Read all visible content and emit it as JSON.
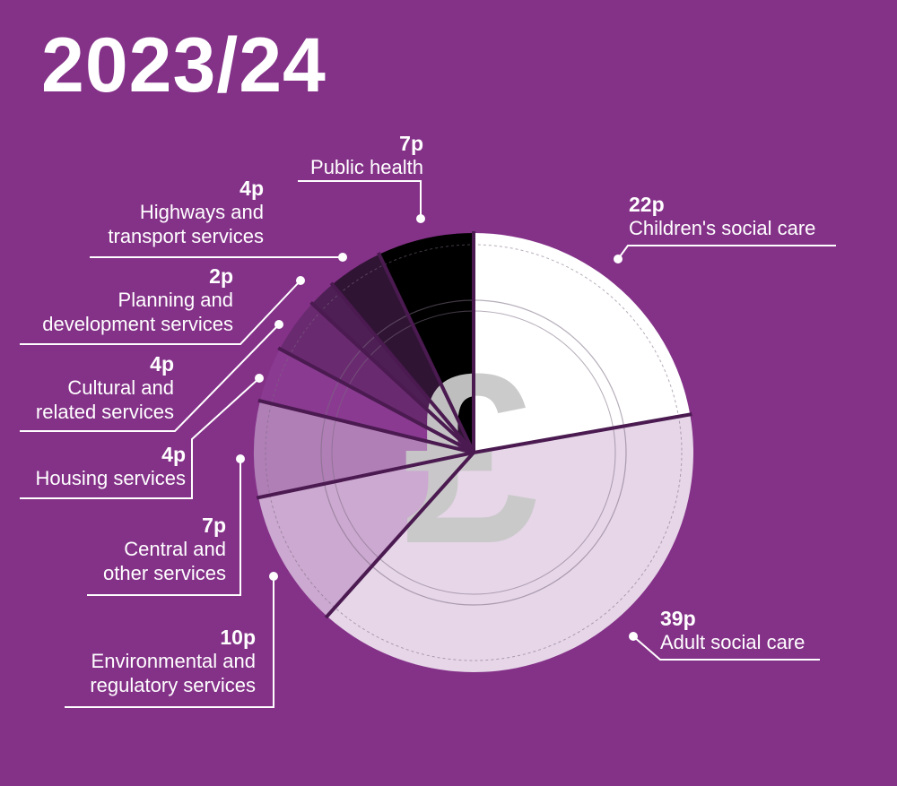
{
  "title": "2023/24",
  "chart_data": {
    "type": "pie",
    "unit": "p",
    "title": "2023/24",
    "slices": [
      {
        "label": "Children's social care",
        "value": 22,
        "value_label": "22p",
        "color": "#ffffff"
      },
      {
        "label": "Adult social care",
        "value": 39,
        "value_label": "39p",
        "color": "#e6d6e8"
      },
      {
        "label": "Environmental and regulatory services",
        "value": 10,
        "value_label": "10p",
        "color": "#cca9d0"
      },
      {
        "label": "Central and other services",
        "value": 7,
        "value_label": "7p",
        "color": "#b07fb6"
      },
      {
        "label": "Housing services",
        "value": 4,
        "value_label": "4p",
        "color": "#8a3b91"
      },
      {
        "label": "Cultural and related services",
        "value": 4,
        "value_label": "4p",
        "color": "#6a2a70"
      },
      {
        "label": "Planning and development services",
        "value": 2,
        "value_label": "2p",
        "color": "#4e1f54"
      },
      {
        "label": "Highways and transport services",
        "value": 4,
        "value_label": "4p",
        "color": "#301434"
      },
      {
        "label": "Public health",
        "value": 7,
        "value_label": "7p",
        "color": "#000000"
      }
    ],
    "colors": {
      "background": "#843188",
      "divider": "#4a1a50",
      "symbol": "#c8c8c8"
    },
    "icon": "pound-sign-icon"
  }
}
